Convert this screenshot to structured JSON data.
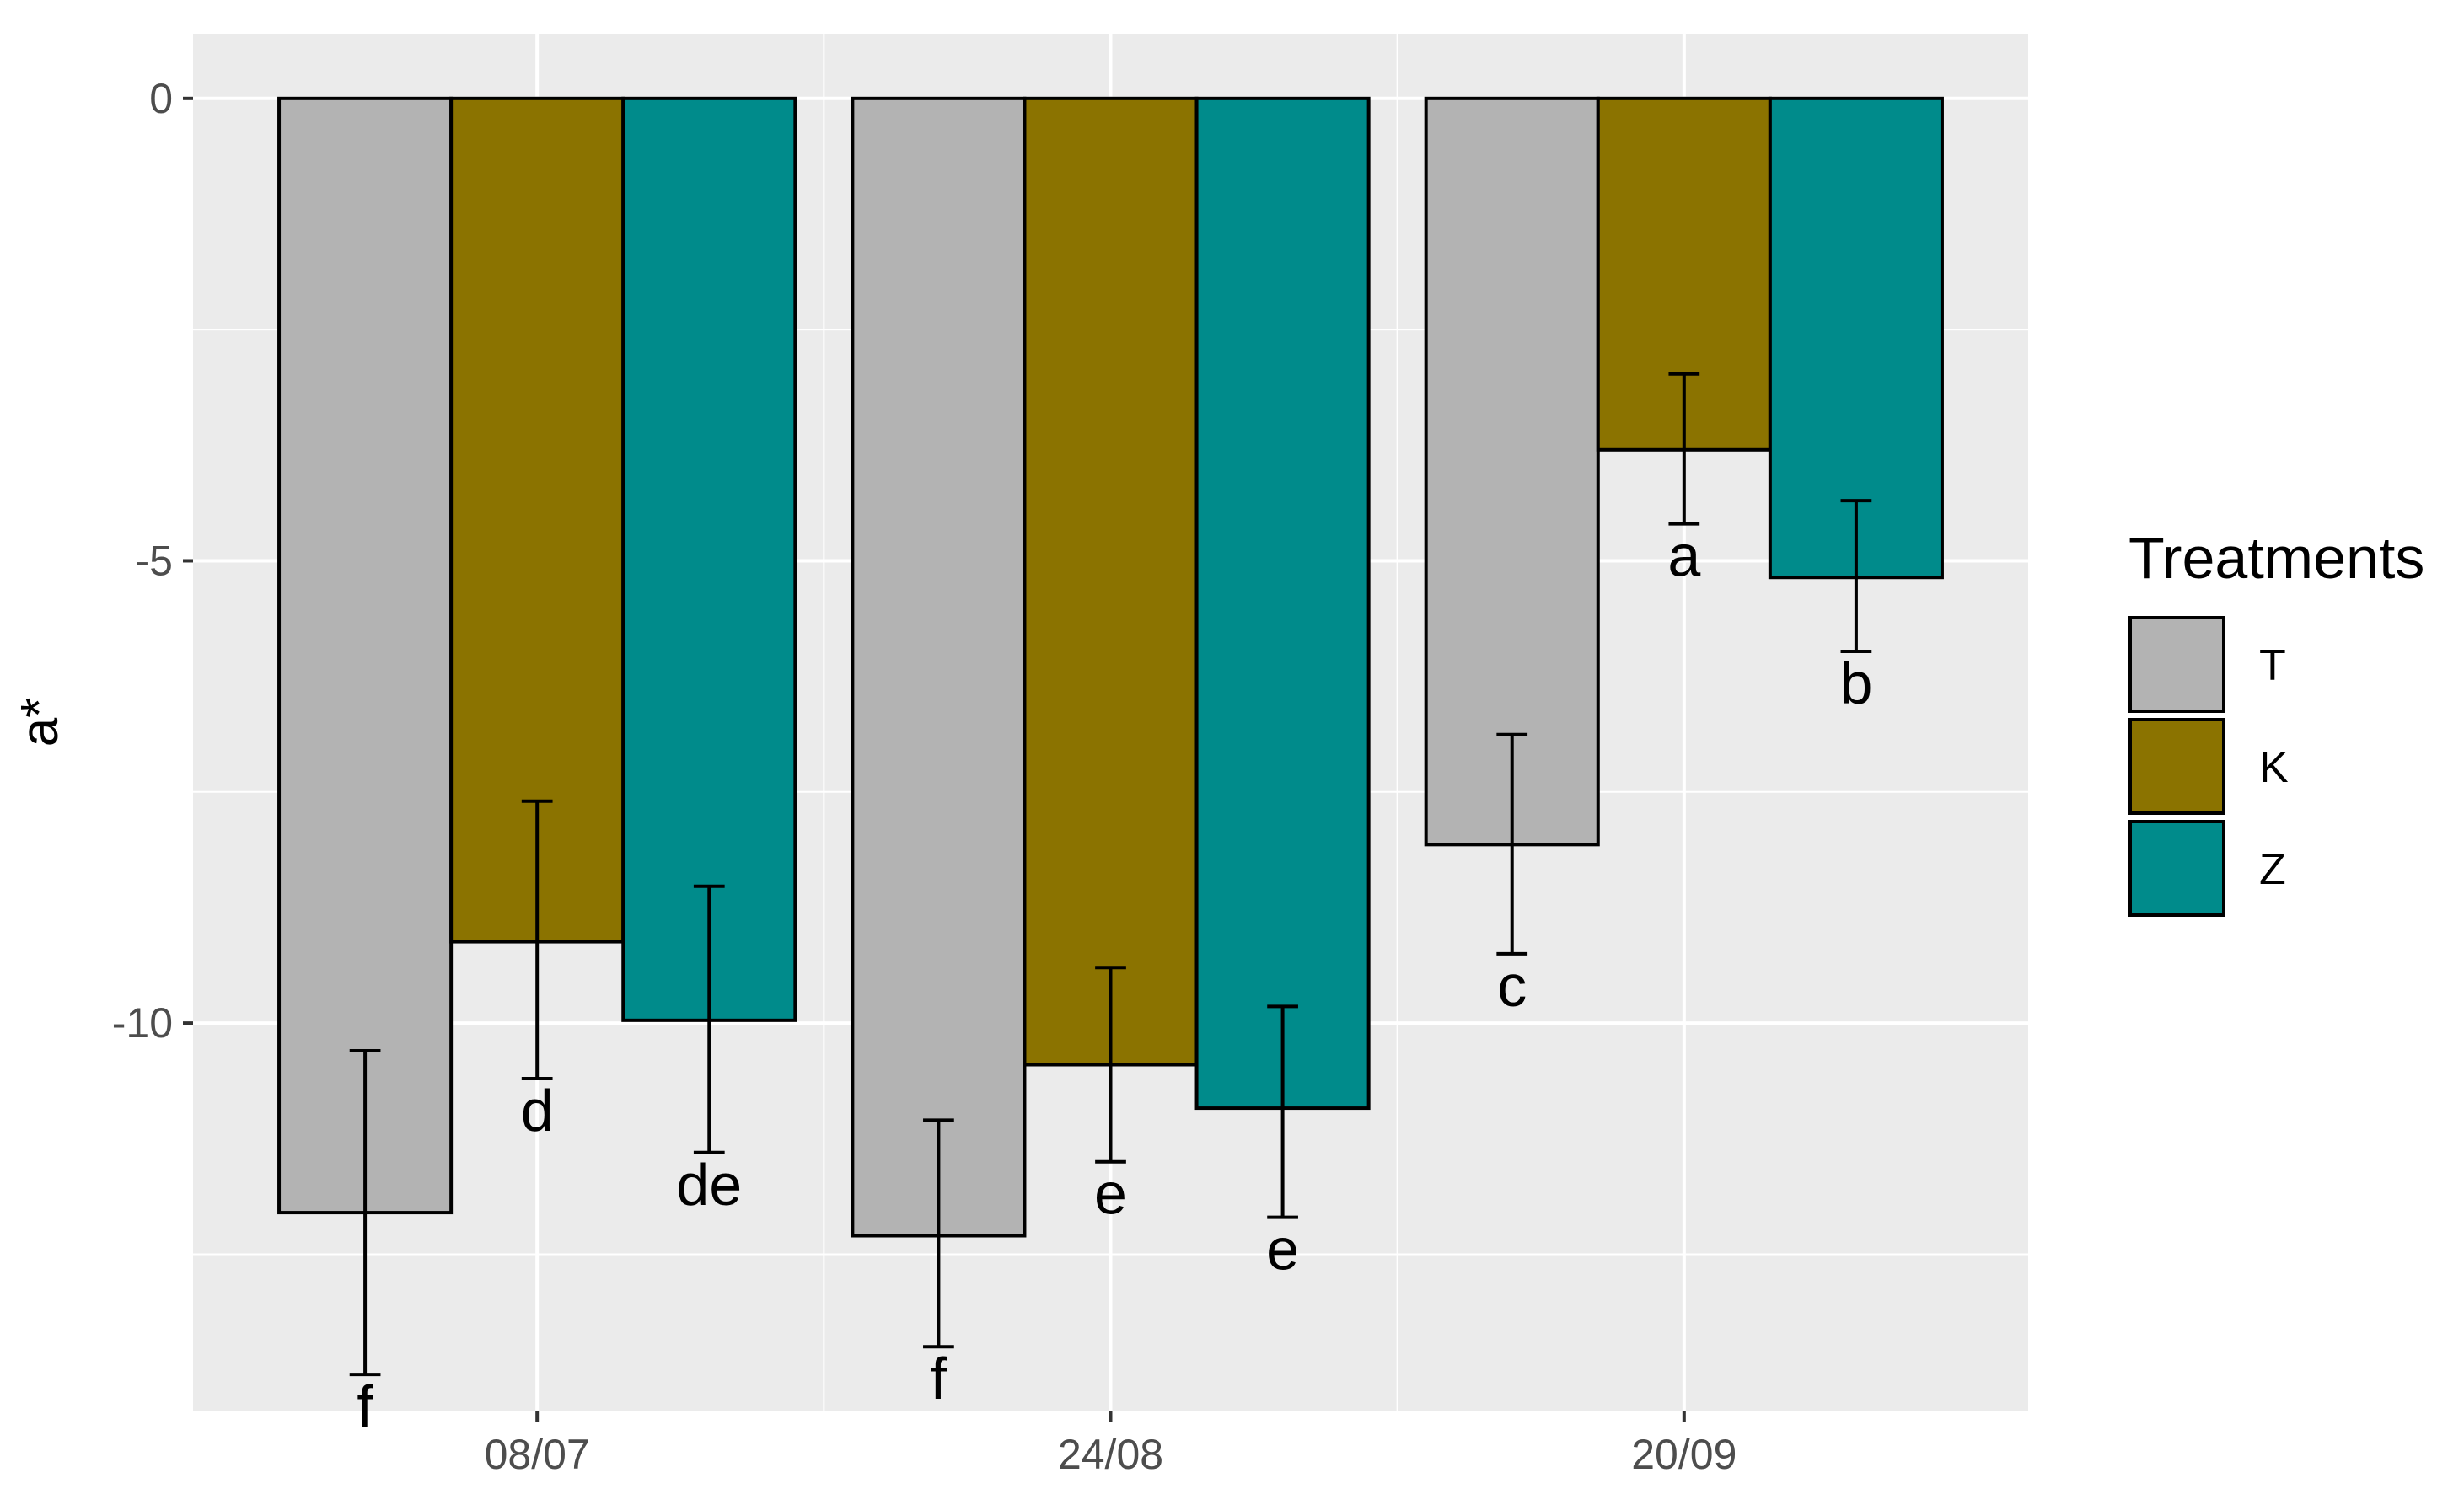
{
  "chart_data": {
    "type": "bar",
    "title": "",
    "xlabel": "",
    "ylabel": "a*",
    "ylim": [
      -14.2,
      0.7
    ],
    "yticks": [
      0,
      -5,
      -10
    ],
    "grid": true,
    "legend_placement": "right",
    "legend_title": "Treatments",
    "categories": [
      "08/07",
      "24/08",
      "20/09"
    ],
    "series": [
      {
        "name": "T",
        "color": "#b3b3b3",
        "values": [
          -12.05,
          -12.3,
          -8.07
        ],
        "error_low": [
          -13.8,
          -13.5,
          -9.25
        ],
        "error_high": [
          -10.3,
          -11.05,
          -6.88
        ],
        "labels": [
          "f",
          "f",
          "c"
        ]
      },
      {
        "name": "K",
        "color": "#8b7300",
        "values": [
          -9.12,
          -10.45,
          -3.8
        ],
        "error_low": [
          -10.6,
          -11.5,
          -4.6
        ],
        "error_high": [
          -7.6,
          -9.4,
          -2.98
        ],
        "labels": [
          "d",
          "e",
          "a"
        ]
      },
      {
        "name": "Z",
        "color": "#008b8b",
        "values": [
          -9.97,
          -10.92,
          -5.18
        ],
        "error_low": [
          -11.4,
          -12.1,
          -5.98
        ],
        "error_high": [
          -8.52,
          -9.82,
          -4.35
        ],
        "labels": [
          "de",
          "e",
          "b"
        ]
      }
    ]
  }
}
